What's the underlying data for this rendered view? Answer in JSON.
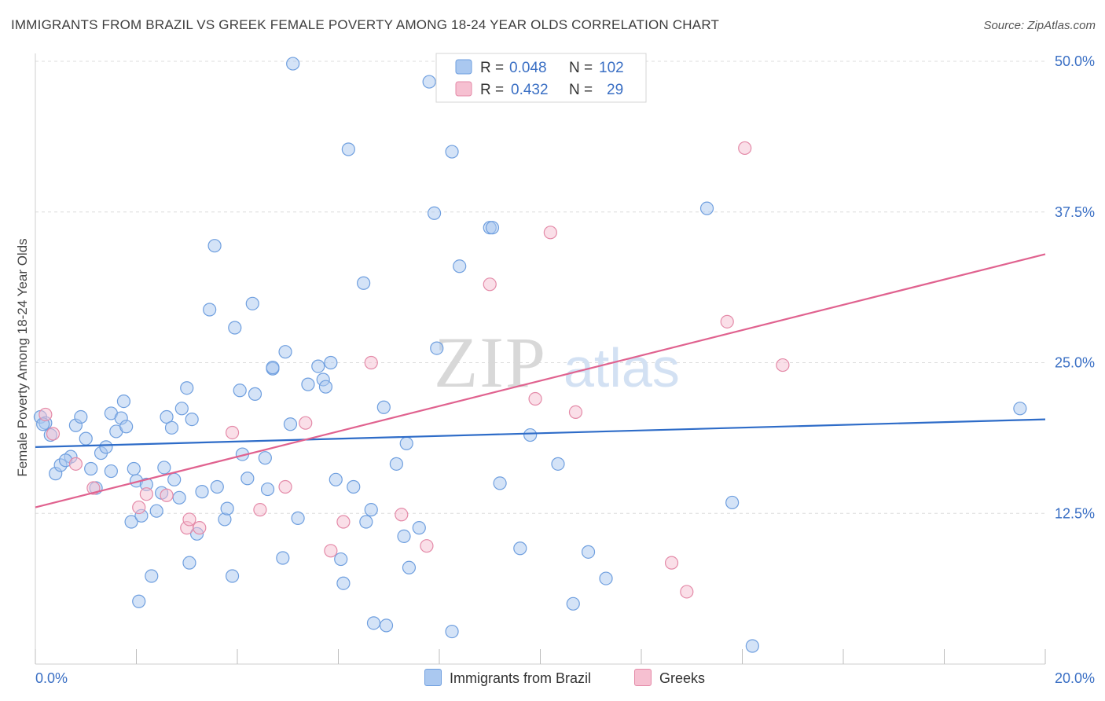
{
  "title": "IMMIGRANTS FROM BRAZIL VS GREEK FEMALE POVERTY AMONG 18-24 YEAR OLDS CORRELATION CHART",
  "source": "Source: ZipAtlas.com",
  "watermark": {
    "zip": "ZIP",
    "atlas": "atlas"
  },
  "colors": {
    "blue_fill": "#aac8f0",
    "blue_stroke": "#6f9fdf",
    "blue_line": "#2e6cc8",
    "pink_fill": "#f6c0d1",
    "pink_stroke": "#e48aa8",
    "pink_line": "#e0628f",
    "axis_label": "#3a6fc4",
    "grid": "#dcdcdc"
  },
  "stats_legend": [
    {
      "r_label": "R =",
      "r_value": "0.048",
      "n_label": "N =",
      "n_value": "102",
      "color": "blue"
    },
    {
      "r_label": "R =",
      "r_value": "0.432",
      "n_label": "N =",
      "n_value": "29",
      "color": "pink"
    }
  ],
  "chart_data": {
    "type": "scatter",
    "title": "IMMIGRANTS FROM BRAZIL VS GREEK FEMALE POVERTY AMONG 18-24 YEAR OLDS CORRELATION CHART",
    "xlabel": "",
    "ylabel": "Female Poverty Among 18-24 Year Olds",
    "xlim": [
      0,
      20
    ],
    "ylim": [
      0,
      50
    ],
    "x_tick_labels": [
      "0.0%",
      "20.0%"
    ],
    "y_ticks": [
      12.5,
      25.0,
      37.5,
      50.0
    ],
    "y_tick_labels": [
      "12.5%",
      "25.0%",
      "37.5%",
      "50.0%"
    ],
    "grid": true,
    "legend_position": "bottom",
    "series": [
      {
        "name": "Immigrants from Brazil",
        "color": "blue",
        "trend": {
          "x": [
            0,
            20
          ],
          "y": [
            18.0,
            20.3
          ]
        },
        "points": [
          [
            0.1,
            20.5
          ],
          [
            0.2,
            20.0
          ],
          [
            0.3,
            19.0
          ],
          [
            0.4,
            15.8
          ],
          [
            0.5,
            16.5
          ],
          [
            0.7,
            17.2
          ],
          [
            0.8,
            19.8
          ],
          [
            0.9,
            20.5
          ],
          [
            1.0,
            18.7
          ],
          [
            1.1,
            16.2
          ],
          [
            1.2,
            14.6
          ],
          [
            1.3,
            17.5
          ],
          [
            1.4,
            18.0
          ],
          [
            1.5,
            16.0
          ],
          [
            1.5,
            20.8
          ],
          [
            1.6,
            19.3
          ],
          [
            1.7,
            20.4
          ],
          [
            1.75,
            21.8
          ],
          [
            1.8,
            19.7
          ],
          [
            1.9,
            11.8
          ],
          [
            2.0,
            15.2
          ],
          [
            2.05,
            5.2
          ],
          [
            2.1,
            12.3
          ],
          [
            2.2,
            14.9
          ],
          [
            2.3,
            7.3
          ],
          [
            2.4,
            12.7
          ],
          [
            2.5,
            14.2
          ],
          [
            2.55,
            16.3
          ],
          [
            2.6,
            20.5
          ],
          [
            2.7,
            19.6
          ],
          [
            2.75,
            15.3
          ],
          [
            2.85,
            13.8
          ],
          [
            2.9,
            21.2
          ],
          [
            3.0,
            22.9
          ],
          [
            3.05,
            8.4
          ],
          [
            3.1,
            20.3
          ],
          [
            3.2,
            10.8
          ],
          [
            3.3,
            14.3
          ],
          [
            3.45,
            29.4
          ],
          [
            3.55,
            34.7
          ],
          [
            3.6,
            14.7
          ],
          [
            3.75,
            12.0
          ],
          [
            3.8,
            12.9
          ],
          [
            3.9,
            7.3
          ],
          [
            3.95,
            27.9
          ],
          [
            4.05,
            22.7
          ],
          [
            4.1,
            17.4
          ],
          [
            4.2,
            15.4
          ],
          [
            4.3,
            29.9
          ],
          [
            4.35,
            22.4
          ],
          [
            4.55,
            17.1
          ],
          [
            4.6,
            14.5
          ],
          [
            4.7,
            24.5
          ],
          [
            4.9,
            8.8
          ],
          [
            4.95,
            25.9
          ],
          [
            5.05,
            19.9
          ],
          [
            5.1,
            49.8
          ],
          [
            5.2,
            12.1
          ],
          [
            5.4,
            23.2
          ],
          [
            5.6,
            24.7
          ],
          [
            5.7,
            23.6
          ],
          [
            5.75,
            23.0
          ],
          [
            5.85,
            25.0
          ],
          [
            5.95,
            15.3
          ],
          [
            6.05,
            8.7
          ],
          [
            6.1,
            6.7
          ],
          [
            6.3,
            14.7
          ],
          [
            6.5,
            31.6
          ],
          [
            6.55,
            11.8
          ],
          [
            6.65,
            12.8
          ],
          [
            6.7,
            3.4
          ],
          [
            6.9,
            21.3
          ],
          [
            6.95,
            3.2
          ],
          [
            7.15,
            16.6
          ],
          [
            7.3,
            10.6
          ],
          [
            7.35,
            18.3
          ],
          [
            7.4,
            8.0
          ],
          [
            7.6,
            11.3
          ],
          [
            7.8,
            48.3
          ],
          [
            7.9,
            37.4
          ],
          [
            7.95,
            26.2
          ],
          [
            8.25,
            42.5
          ],
          [
            8.25,
            2.7
          ],
          [
            9.0,
            36.2
          ],
          [
            9.05,
            36.2
          ],
          [
            9.2,
            15.0
          ],
          [
            9.6,
            9.6
          ],
          [
            9.8,
            19.0
          ],
          [
            10.35,
            16.6
          ],
          [
            10.65,
            5.0
          ],
          [
            10.95,
            9.3
          ],
          [
            11.3,
            7.1
          ],
          [
            13.3,
            37.8
          ],
          [
            13.8,
            13.4
          ],
          [
            19.5,
            21.2
          ],
          [
            6.2,
            42.7
          ],
          [
            8.4,
            33.0
          ],
          [
            4.7,
            24.6
          ],
          [
            14.2,
            1.5
          ],
          [
            0.15,
            19.9
          ],
          [
            0.6,
            16.9
          ],
          [
            1.95,
            16.2
          ]
        ]
      },
      {
        "name": "Greeks",
        "color": "pink",
        "trend": {
          "x": [
            0,
            20
          ],
          "y": [
            13.0,
            34.0
          ]
        },
        "points": [
          [
            0.2,
            20.7
          ],
          [
            0.35,
            19.1
          ],
          [
            0.8,
            16.6
          ],
          [
            1.15,
            14.6
          ],
          [
            2.05,
            13.0
          ],
          [
            2.6,
            14.0
          ],
          [
            3.0,
            11.3
          ],
          [
            3.25,
            11.3
          ],
          [
            3.9,
            19.2
          ],
          [
            4.45,
            12.8
          ],
          [
            4.95,
            14.7
          ],
          [
            5.35,
            20.0
          ],
          [
            5.85,
            9.4
          ],
          [
            6.1,
            11.8
          ],
          [
            6.65,
            25.0
          ],
          [
            7.25,
            12.4
          ],
          [
            7.75,
            9.8
          ],
          [
            8.65,
            49.9
          ],
          [
            9.0,
            31.5
          ],
          [
            9.9,
            22.0
          ],
          [
            10.2,
            35.8
          ],
          [
            10.7,
            20.9
          ],
          [
            12.6,
            8.4
          ],
          [
            13.7,
            28.4
          ],
          [
            14.05,
            42.8
          ],
          [
            14.8,
            24.8
          ],
          [
            12.9,
            6.0
          ],
          [
            2.2,
            14.1
          ],
          [
            3.05,
            12.0
          ]
        ]
      }
    ]
  }
}
